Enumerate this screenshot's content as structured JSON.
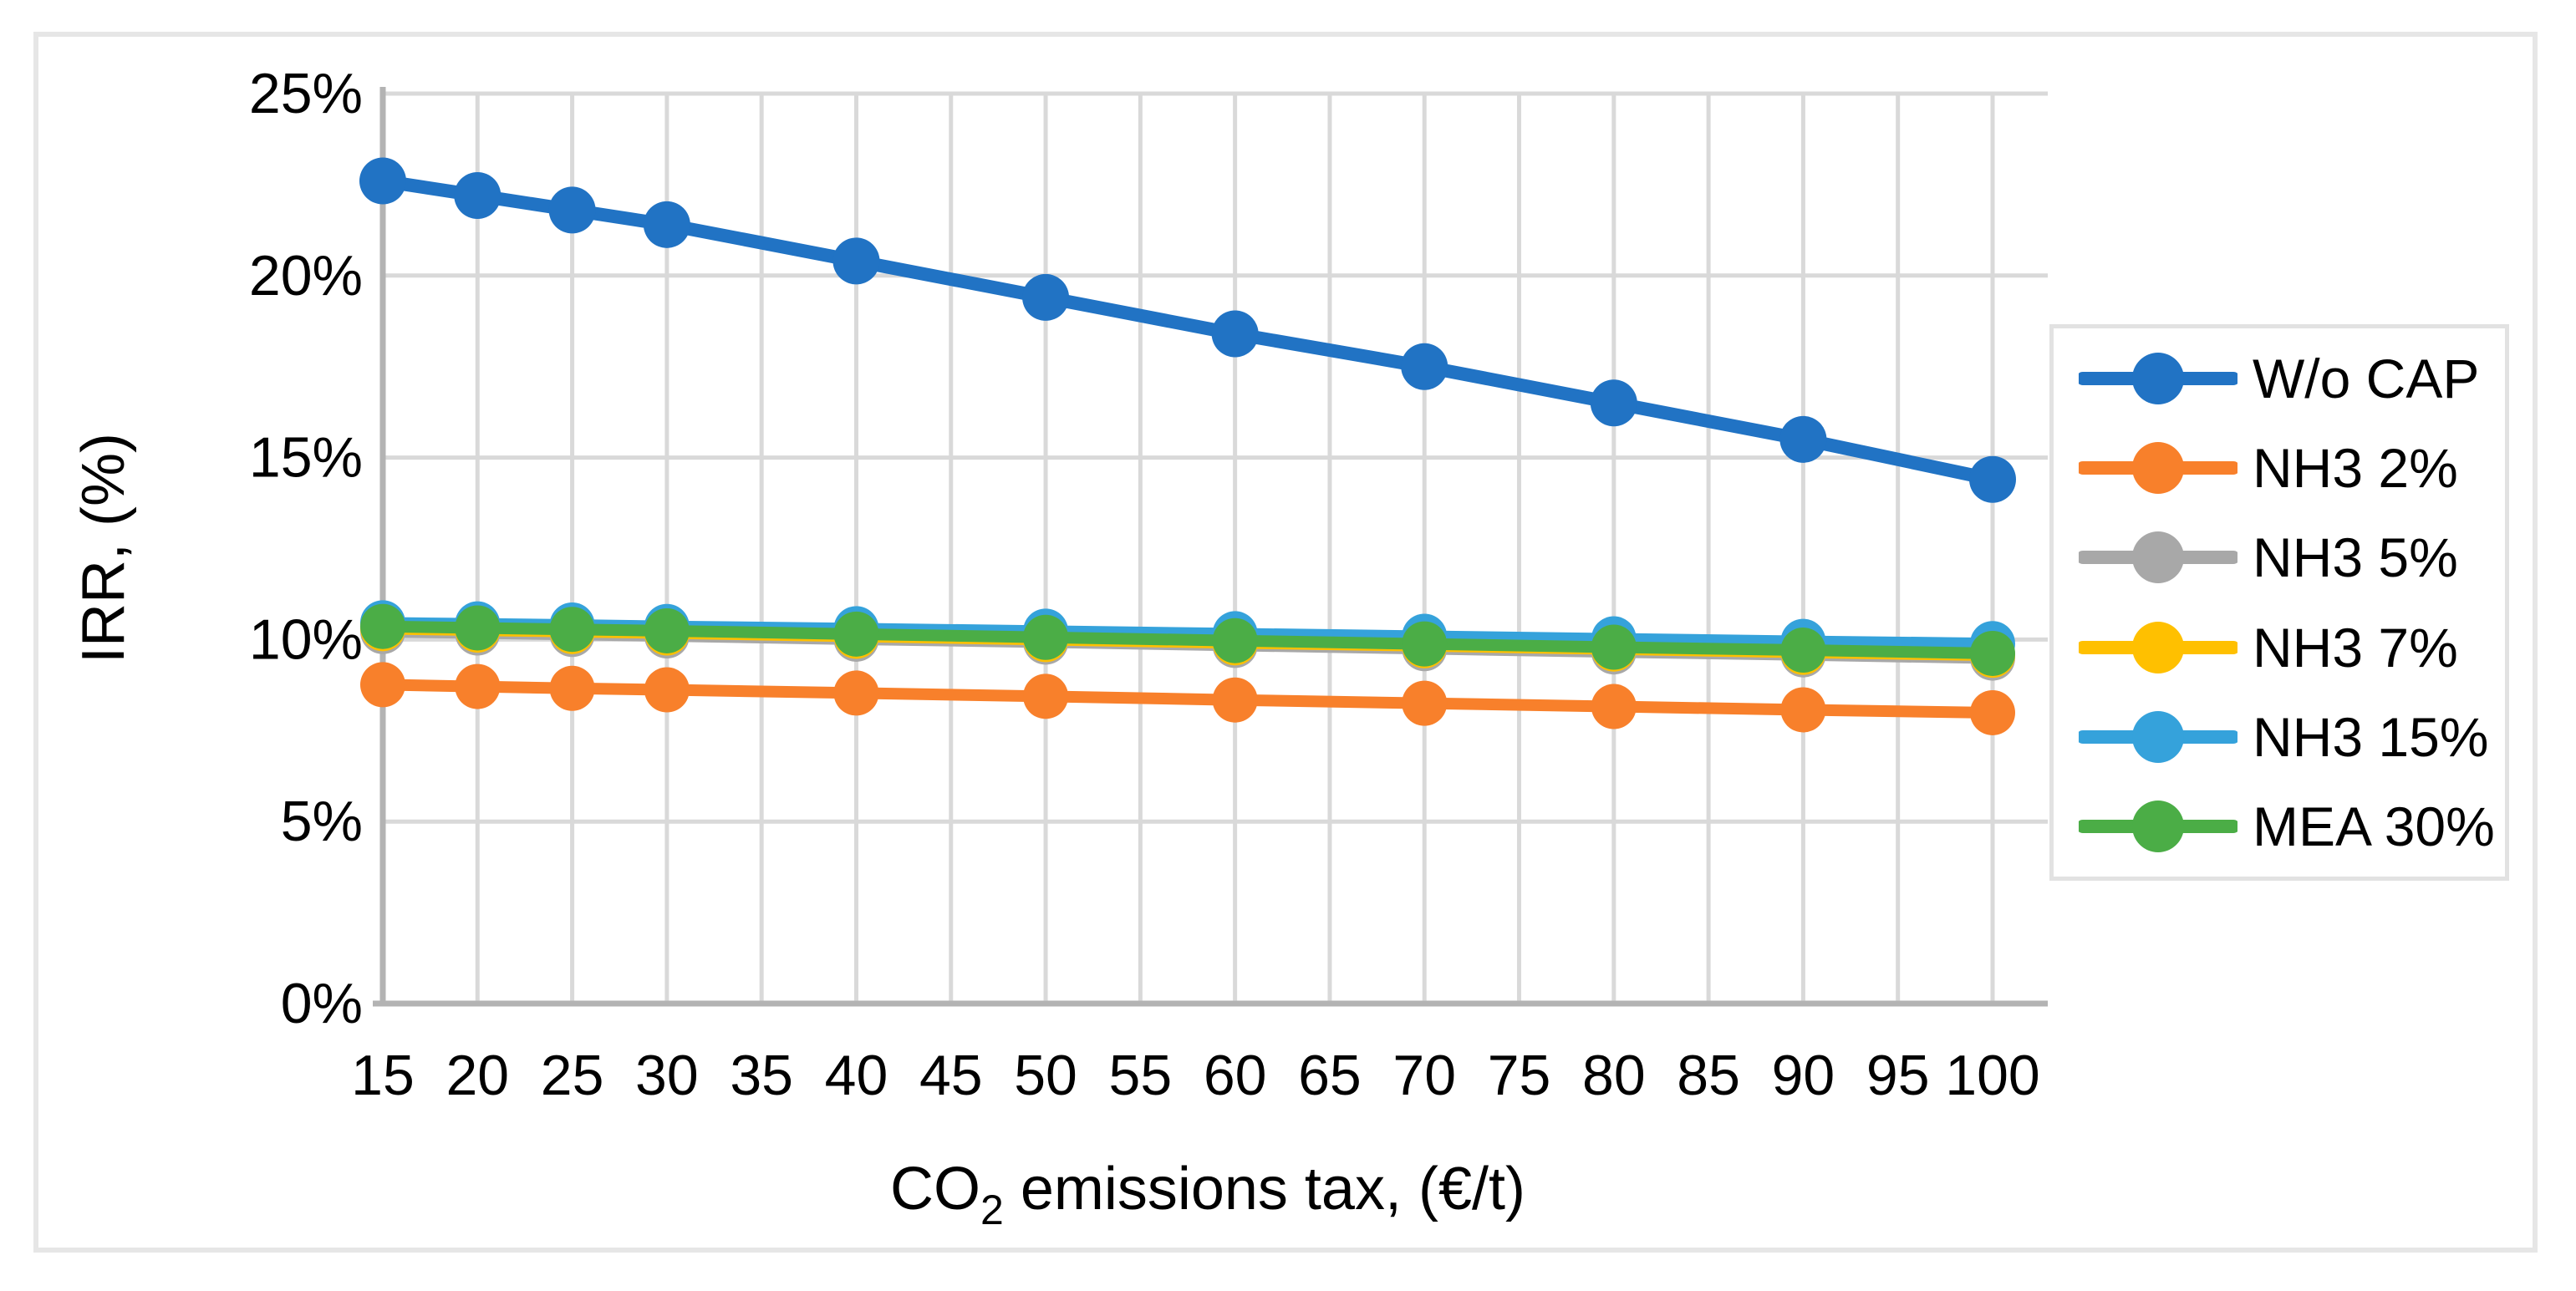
{
  "figure": {
    "background_color": "#ffffff",
    "border_color": "#e6e6e6"
  },
  "chart_data": {
    "type": "line",
    "title": "",
    "xlabel": "CO2 emissions tax, (€/t)",
    "xlabel_parts": {
      "base": "CO",
      "sub": "2",
      "rest": " emissions tax, (€/t)"
    },
    "ylabel": "IRR, (%)",
    "x": [
      15,
      20,
      25,
      30,
      40,
      50,
      60,
      70,
      80,
      90,
      100
    ],
    "x_tick_labels": [
      "15",
      "20",
      "25",
      "30",
      "35",
      "40",
      "45",
      "50",
      "55",
      "60",
      "65",
      "70",
      "75",
      "80",
      "85",
      "90",
      "95",
      "100"
    ],
    "x_ticks": [
      15,
      20,
      25,
      30,
      35,
      40,
      45,
      50,
      55,
      60,
      65,
      70,
      75,
      80,
      85,
      90,
      95,
      100
    ],
    "y_tick_labels": [
      "0%",
      "5%",
      "10%",
      "15%",
      "20%",
      "25%"
    ],
    "y_ticks": [
      0,
      5,
      10,
      15,
      20,
      25
    ],
    "xlim": [
      15,
      100
    ],
    "ylim": [
      0,
      25
    ],
    "grid": true,
    "legend_position": "right",
    "series": [
      {
        "name": "W/o CAP",
        "color": "#2173c4",
        "values": [
          22.6,
          22.2,
          21.8,
          21.4,
          20.4,
          19.4,
          18.4,
          17.5,
          16.5,
          15.5,
          14.4
        ]
      },
      {
        "name": "NH3 2%",
        "color": "#f8802b",
        "values": [
          8.76,
          8.71,
          8.66,
          8.62,
          8.53,
          8.44,
          8.34,
          8.25,
          8.16,
          8.07,
          7.99
        ]
      },
      {
        "name": "NH3 5%",
        "color": "#a8a8a8",
        "values": [
          10.22,
          10.18,
          10.14,
          10.1,
          10.01,
          9.93,
          9.84,
          9.75,
          9.66,
          9.58,
          9.49
        ]
      },
      {
        "name": "NH3 7%",
        "color": "#ffc000",
        "values": [
          10.3,
          10.26,
          10.22,
          10.18,
          10.09,
          10.0,
          9.91,
          9.83,
          9.74,
          9.65,
          9.57
        ]
      },
      {
        "name": "NH3 15%",
        "color": "#35a2db",
        "values": [
          10.46,
          10.43,
          10.4,
          10.36,
          10.3,
          10.23,
          10.16,
          10.09,
          10.02,
          9.95,
          9.89
        ]
      },
      {
        "name": "MEA 30%",
        "color": "#4bad46",
        "values": [
          10.36,
          10.32,
          10.28,
          10.24,
          10.15,
          10.06,
          9.97,
          9.88,
          9.79,
          9.71,
          9.62
        ]
      }
    ],
    "colors": {
      "gridline": "#d9d9d9",
      "axis_line": "#b3b3b3",
      "tick_text": "#000000",
      "legend_border": "#e2e2e2"
    }
  }
}
